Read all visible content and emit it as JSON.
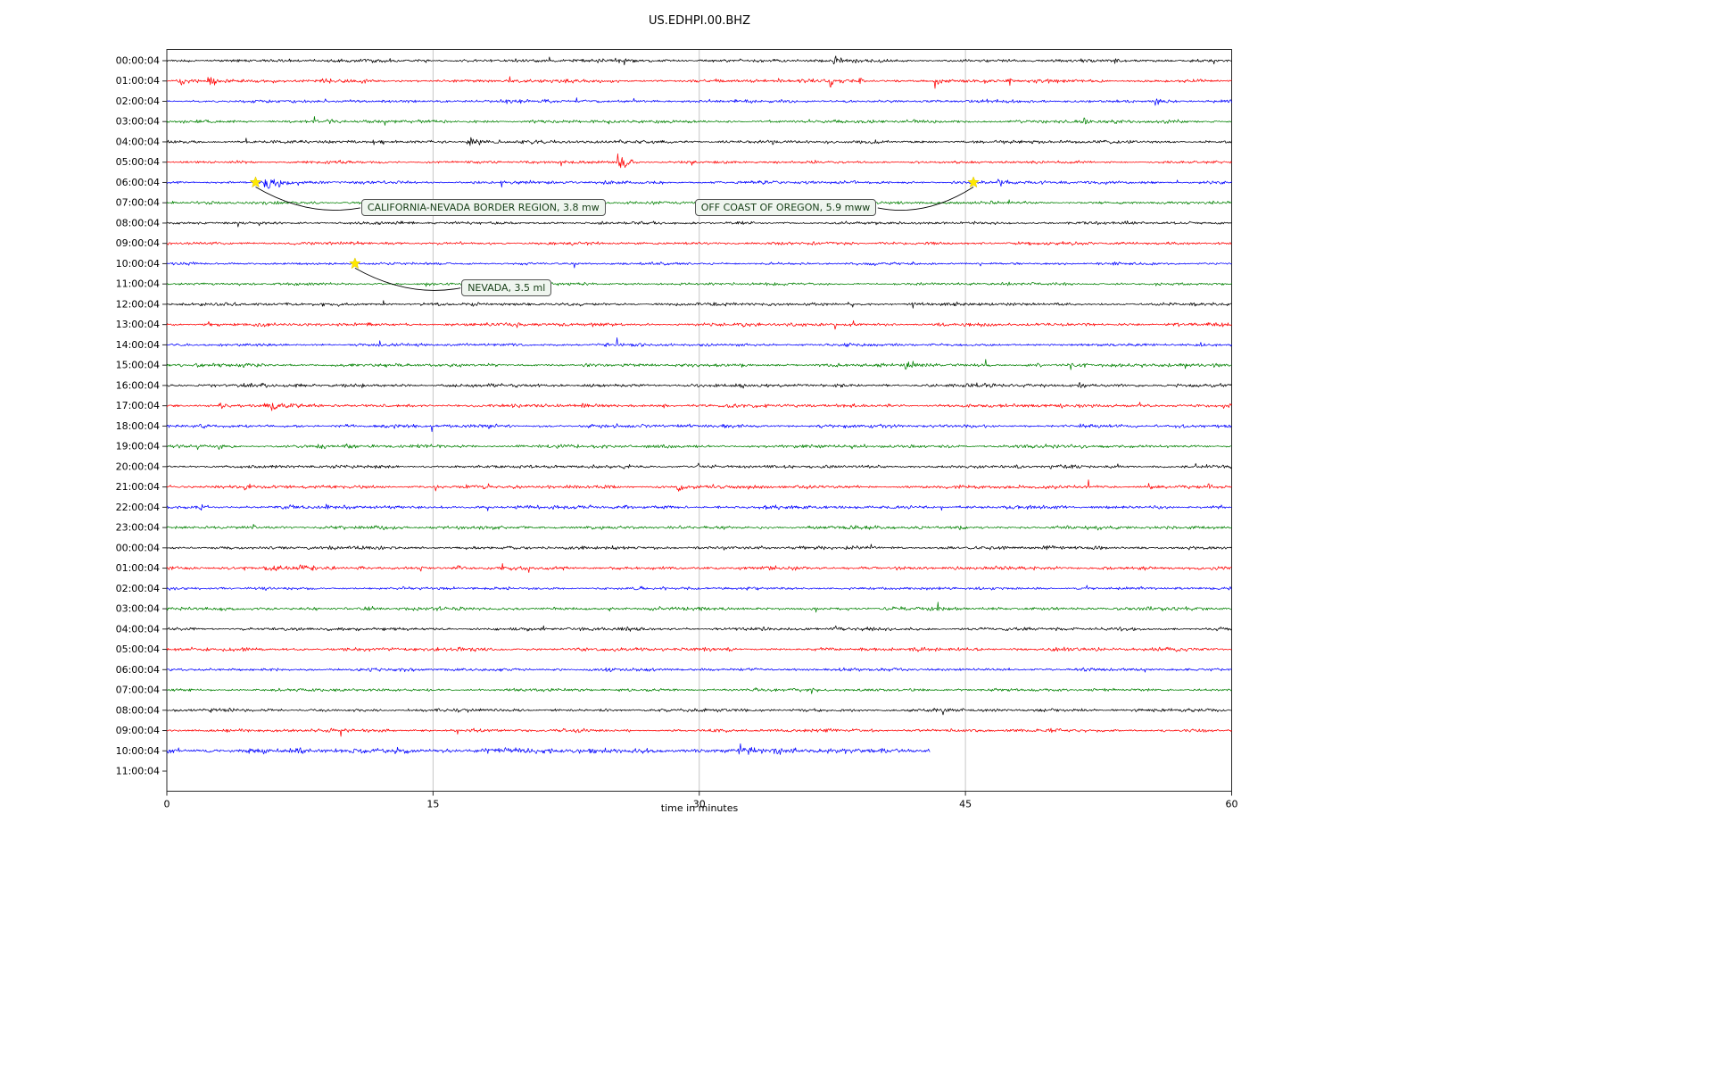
{
  "chart_data": {
    "type": "line",
    "variant": "seismogram-helicorder",
    "title": "US.EDHPI.00.BHZ",
    "xlabel": "time in minutes",
    "xlim": [
      0,
      60
    ],
    "x_ticks": [
      0,
      15,
      30,
      45,
      60
    ],
    "grid": "vertical-only",
    "trace_color_cycle": [
      "#000000",
      "#ff0000",
      "#0000ff",
      "#008000"
    ],
    "rows": [
      {
        "label": "00:00:04",
        "color": "#000000"
      },
      {
        "label": "01:00:04",
        "color": "#ff0000"
      },
      {
        "label": "02:00:04",
        "color": "#0000ff",
        "amp": 1.7
      },
      {
        "label": "03:00:04",
        "color": "#008000"
      },
      {
        "label": "04:00:04",
        "color": "#000000"
      },
      {
        "label": "05:00:04",
        "color": "#ff0000",
        "amp": 1.5
      },
      {
        "label": "06:00:04",
        "color": "#0000ff"
      },
      {
        "label": "07:00:04",
        "color": "#008000",
        "amp": 1.7
      },
      {
        "label": "08:00:04",
        "color": "#000000",
        "amp": 1.6
      },
      {
        "label": "09:00:04",
        "color": "#ff0000",
        "amp": 1.7
      },
      {
        "label": "10:00:04",
        "color": "#0000ff",
        "amp": 1.5
      },
      {
        "label": "11:00:04",
        "color": "#008000",
        "amp": 1.6
      },
      {
        "label": "12:00:04",
        "color": "#000000",
        "amp": 1.8
      },
      {
        "label": "13:00:04",
        "color": "#ff0000"
      },
      {
        "label": "14:00:04",
        "color": "#0000ff",
        "amp": 1.6
      },
      {
        "label": "15:00:04",
        "color": "#008000"
      },
      {
        "label": "16:00:04",
        "color": "#000000"
      },
      {
        "label": "17:00:04",
        "color": "#ff0000"
      },
      {
        "label": "18:00:04",
        "color": "#0000ff"
      },
      {
        "label": "19:00:04",
        "color": "#008000"
      },
      {
        "label": "20:00:04",
        "color": "#000000"
      },
      {
        "label": "21:00:04",
        "color": "#ff0000"
      },
      {
        "label": "22:00:04",
        "color": "#0000ff"
      },
      {
        "label": "23:00:04",
        "color": "#008000"
      },
      {
        "label": "00:00:04",
        "color": "#000000"
      },
      {
        "label": "01:00:04",
        "color": "#ff0000"
      },
      {
        "label": "02:00:04",
        "color": "#0000ff",
        "amp": 1.6
      },
      {
        "label": "03:00:04",
        "color": "#008000"
      },
      {
        "label": "04:00:04",
        "color": "#000000"
      },
      {
        "label": "05:00:04",
        "color": "#ff0000",
        "amp": 2.1
      },
      {
        "label": "06:00:04",
        "color": "#0000ff",
        "amp": 1.7
      },
      {
        "label": "07:00:04",
        "color": "#008000",
        "amp": 1.7
      },
      {
        "label": "08:00:04",
        "color": "#000000",
        "amp": 1.8
      },
      {
        "label": "09:00:04",
        "color": "#ff0000",
        "amp": 1.8
      },
      {
        "label": "10:00:04",
        "color": "#0000ff",
        "amp": 3.0,
        "end_minute": 43
      },
      {
        "label": "11:00:04",
        "color": "#008000",
        "empty": true
      }
    ],
    "annotations": [
      {
        "label": "CALIFORNIA-NEVADA BORDER REGION, 3.8 mw",
        "star_minute": 5.0,
        "star_row": 6,
        "box_minute": 10.95,
        "box_row": 7.25
      },
      {
        "label": "OFF COAST OF OREGON, 5.9 mww",
        "star_minute": 45.45,
        "star_row": 6,
        "box_minute": 29.75,
        "box_row": 7.25
      },
      {
        "label": "NEVADA, 3.5 ml",
        "star_minute": 10.6,
        "star_row": 10,
        "box_minute": 16.6,
        "box_row": 11.2
      }
    ],
    "event_marker_color": "#ffe800",
    "bursts": [
      {
        "row": 0,
        "t": 37.4,
        "d": 1.6,
        "a": 6
      },
      {
        "row": 0,
        "t": 40.0,
        "d": 1.0,
        "a": 5
      },
      {
        "row": 0,
        "t": 53.4,
        "d": 0.5,
        "a": 9
      },
      {
        "row": 1,
        "t": 0.6,
        "d": 1.4,
        "a": 8
      },
      {
        "row": 1,
        "t": 2.2,
        "d": 1.2,
        "a": 9
      },
      {
        "row": 1,
        "t": 34.4,
        "d": 0.4,
        "a": 8
      },
      {
        "row": 1,
        "t": 37.3,
        "d": 0.6,
        "a": 11
      },
      {
        "row": 1,
        "t": 38.9,
        "d": 0.5,
        "a": 10
      },
      {
        "row": 1,
        "t": 43.2,
        "d": 0.5,
        "a": 15
      },
      {
        "row": 1,
        "t": 47.3,
        "d": 0.6,
        "a": 9
      },
      {
        "row": 2,
        "t": 55.5,
        "d": 1.4,
        "a": 7
      },
      {
        "row": 3,
        "t": 8.8,
        "d": 1.6,
        "a": 5
      },
      {
        "row": 3,
        "t": 51.6,
        "d": 0.5,
        "a": 6
      },
      {
        "row": 4,
        "t": 16.8,
        "d": 2.4,
        "a": 6
      },
      {
        "row": 5,
        "t": 25.3,
        "d": 1.4,
        "a": 18
      },
      {
        "row": 6,
        "t": 5.3,
        "d": 2.4,
        "a": 13
      },
      {
        "row": 6,
        "t": 46.6,
        "d": 1.6,
        "a": 5
      },
      {
        "row": 10,
        "t": 10.5,
        "d": 0.8,
        "a": 3
      },
      {
        "row": 15,
        "t": 41.3,
        "d": 2.2,
        "a": 7
      },
      {
        "row": 15,
        "t": 48.9,
        "d": 0.6,
        "a": 5
      },
      {
        "row": 15,
        "t": 50.8,
        "d": 1.2,
        "a": 4
      },
      {
        "row": 16,
        "t": 49.2,
        "d": 0.4,
        "a": 5
      },
      {
        "row": 16,
        "t": 51.3,
        "d": 1.0,
        "a": 5
      },
      {
        "row": 17,
        "t": 2.8,
        "d": 1.2,
        "a": 5
      },
      {
        "row": 17,
        "t": 5.8,
        "d": 1.6,
        "a": 7
      },
      {
        "row": 17,
        "t": 23.3,
        "d": 1.2,
        "a": 5
      },
      {
        "row": 17,
        "t": 27.8,
        "d": 0.9,
        "a": 5
      },
      {
        "row": 17,
        "t": 44.8,
        "d": 0.6,
        "a": 4
      },
      {
        "row": 17,
        "t": 50.3,
        "d": 0.6,
        "a": 4
      },
      {
        "row": 17,
        "t": 54.7,
        "d": 1.2,
        "a": 5
      },
      {
        "row": 18,
        "t": 1.8,
        "d": 0.6,
        "a": 5
      },
      {
        "row": 18,
        "t": 34.8,
        "d": 0.5,
        "a": 5
      },
      {
        "row": 18,
        "t": 36.8,
        "d": 0.5,
        "a": 4
      },
      {
        "row": 19,
        "t": 2.8,
        "d": 0.5,
        "a": 6
      },
      {
        "row": 19,
        "t": 9.8,
        "d": 0.5,
        "a": 5
      },
      {
        "row": 19,
        "t": 50.8,
        "d": 0.6,
        "a": 7
      },
      {
        "row": 20,
        "t": 29.8,
        "d": 0.5,
        "a": 6
      },
      {
        "row": 21,
        "t": 4.3,
        "d": 0.7,
        "a": 6
      },
      {
        "row": 21,
        "t": 15.1,
        "d": 0.4,
        "a": 6
      },
      {
        "row": 21,
        "t": 28.7,
        "d": 0.9,
        "a": 7
      },
      {
        "row": 21,
        "t": 47.8,
        "d": 0.5,
        "a": 5
      },
      {
        "row": 21,
        "t": 55.2,
        "d": 0.9,
        "a": 6
      },
      {
        "row": 21,
        "t": 58.6,
        "d": 0.7,
        "a": 6
      },
      {
        "row": 22,
        "t": 1.8,
        "d": 1.2,
        "a": 5
      },
      {
        "row": 22,
        "t": 6.8,
        "d": 1.2,
        "a": 5
      },
      {
        "row": 22,
        "t": 8.9,
        "d": 0.7,
        "a": 4
      },
      {
        "row": 22,
        "t": 59.2,
        "d": 0.5,
        "a": 7
      },
      {
        "row": 23,
        "t": 4.8,
        "d": 0.5,
        "a": 6
      },
      {
        "row": 23,
        "t": 16.3,
        "d": 0.5,
        "a": 7
      },
      {
        "row": 23,
        "t": 18.3,
        "d": 0.6,
        "a": 8
      },
      {
        "row": 24,
        "t": 31.1,
        "d": 0.5,
        "a": 7
      },
      {
        "row": 25,
        "t": 4.3,
        "d": 0.6,
        "a": 5
      },
      {
        "row": 25,
        "t": 7.3,
        "d": 2.2,
        "a": 5
      },
      {
        "row": 25,
        "t": 10.8,
        "d": 0.6,
        "a": 5
      },
      {
        "row": 25,
        "t": 16.3,
        "d": 0.9,
        "a": 6
      },
      {
        "row": 25,
        "t": 33.8,
        "d": 0.6,
        "a": 5
      },
      {
        "row": 27,
        "t": 11.0,
        "d": 1.2,
        "a": 6
      }
    ]
  }
}
